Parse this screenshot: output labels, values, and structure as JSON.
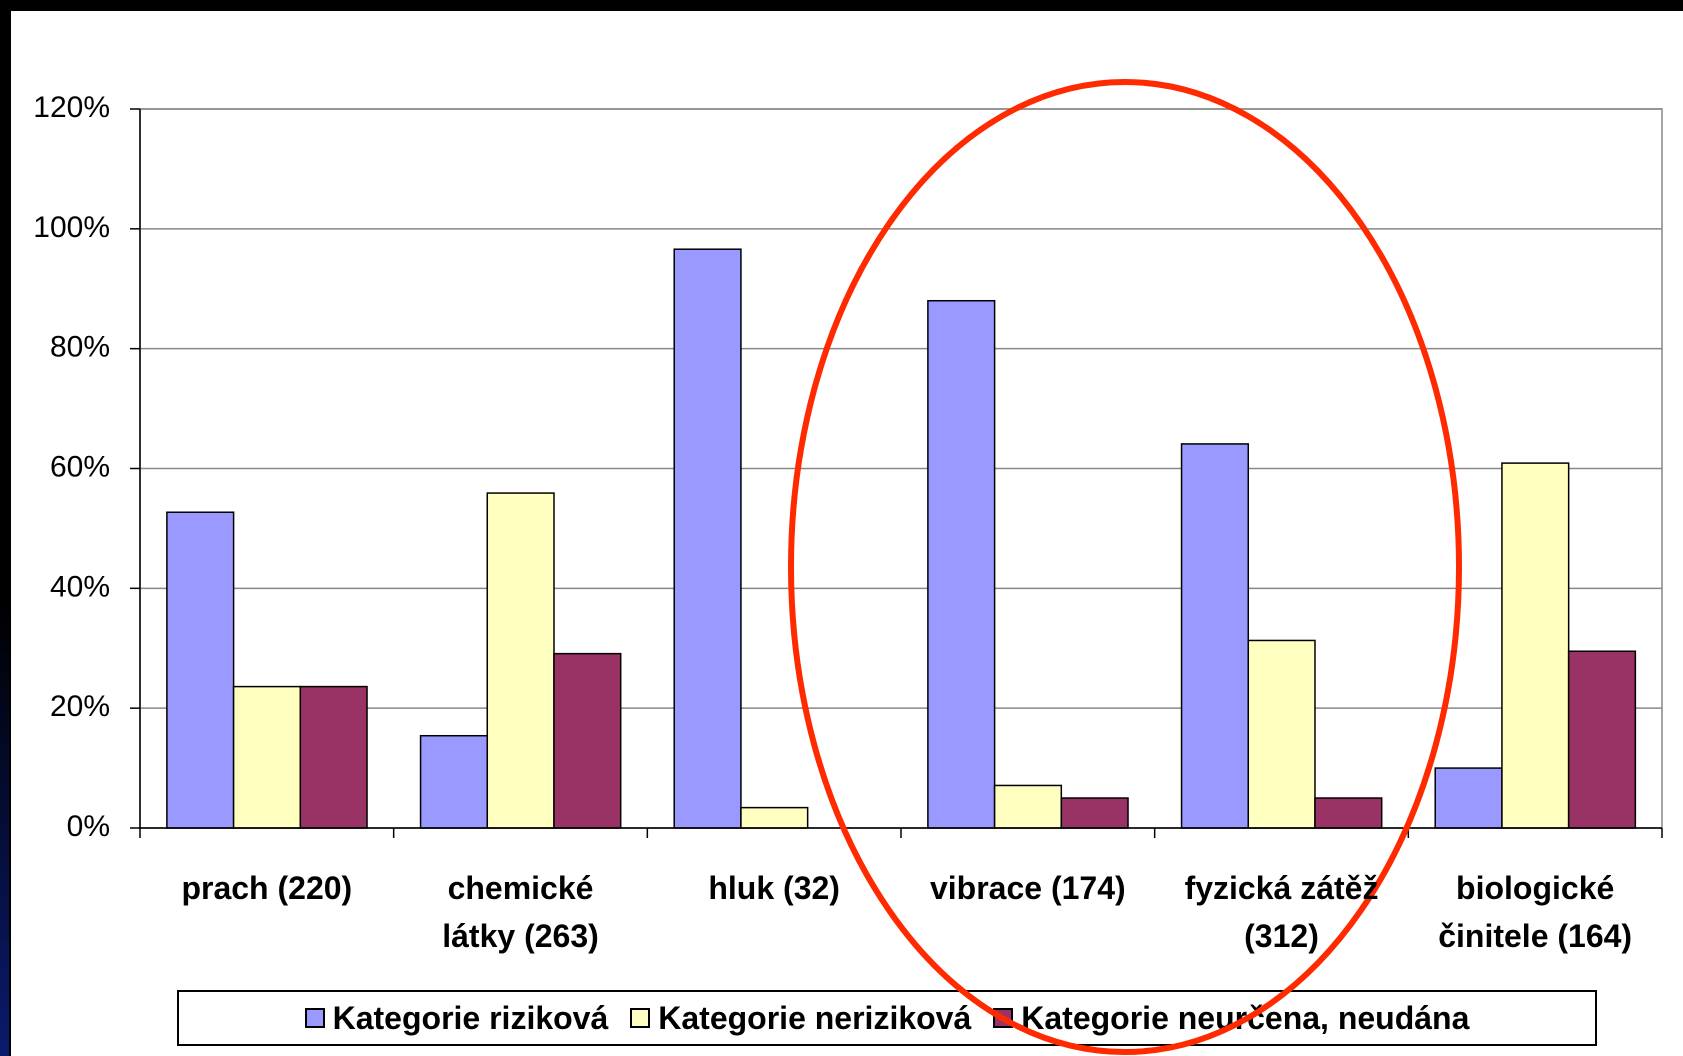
{
  "chart_data": {
    "type": "bar",
    "categories": [
      "prach (220)",
      "chemické\nlátky (263)",
      "hluk (32)",
      "vibrace (174)",
      "fyzická zátěž\n(312)",
      "biologické\nčinitele (164)"
    ],
    "series": [
      {
        "name": "Kategorie riziková",
        "color": "#9999ff",
        "values": [
          52.7,
          15.4,
          96.6,
          88.0,
          64.1,
          10.0
        ]
      },
      {
        "name": "Kategorie neriziková",
        "color": "#ffffc0",
        "values": [
          23.6,
          55.9,
          3.4,
          7.1,
          31.3,
          60.9
        ]
      },
      {
        "name": "Kategorie neurčena, neudána",
        "color": "#993366",
        "values": [
          23.6,
          29.1,
          0,
          5.0,
          5.0,
          29.5
        ]
      }
    ],
    "ylim": [
      0,
      120
    ],
    "yticks": [
      {
        "value": 0,
        "label": "0%"
      },
      {
        "value": 20,
        "label": "20%"
      },
      {
        "value": 40,
        "label": "40%"
      },
      {
        "value": 60,
        "label": "60%"
      },
      {
        "value": 80,
        "label": "80%"
      },
      {
        "value": 100,
        "label": "100%"
      },
      {
        "value": 120,
        "label": "120%"
      }
    ],
    "grid": true
  }
}
